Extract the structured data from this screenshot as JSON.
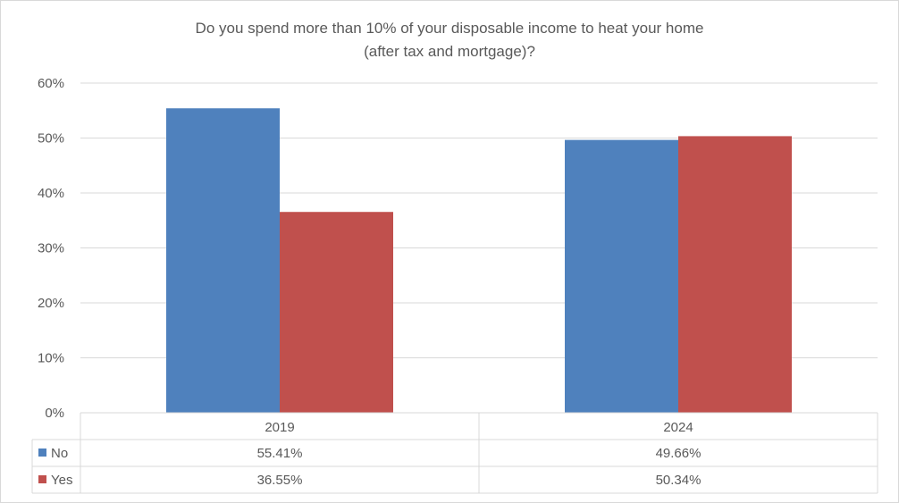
{
  "chart_data": {
    "type": "bar",
    "title_lines": [
      "Do you spend more than 10% of your disposable income to heat your home",
      "(after tax and mortgage)?"
    ],
    "categories": [
      "2019",
      "2024"
    ],
    "series": [
      {
        "name": "No",
        "values": [
          55.41,
          49.66
        ],
        "labels": [
          "55.41%",
          "49.66%"
        ],
        "color": "#4f81bd"
      },
      {
        "name": "Yes",
        "values": [
          36.55,
          50.34
        ],
        "labels": [
          "36.55%",
          "50.34%"
        ],
        "color": "#c0504d"
      }
    ],
    "ylim": [
      0,
      60
    ],
    "yticks": [
      0,
      10,
      20,
      30,
      40,
      50,
      60
    ],
    "ytick_labels": [
      "0%",
      "10%",
      "20%",
      "30%",
      "40%",
      "50%",
      "60%"
    ],
    "grid": true,
    "legend": "data-table"
  }
}
